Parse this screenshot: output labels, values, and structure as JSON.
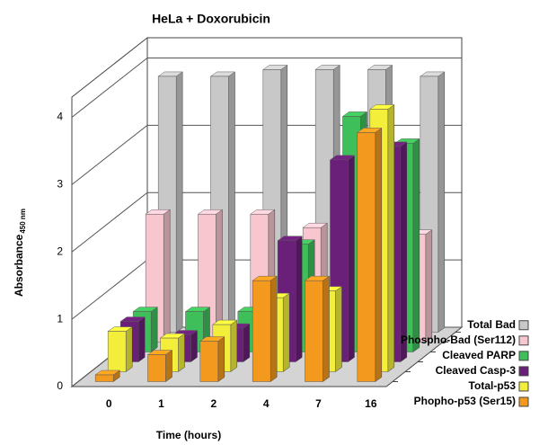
{
  "chart_data": {
    "type": "bar3d",
    "title": "HeLa + Doxorubicin",
    "x_label": "Time (hours)",
    "y_label": "Absorbance",
    "y_label_sub": "450 nm",
    "categories": [
      "0",
      "1",
      "2",
      "4",
      "7",
      "16"
    ],
    "series": [
      {
        "name": "Total Bad",
        "color": "#c8c8c8",
        "values": [
          3.8,
          3.8,
          3.9,
          3.9,
          3.9,
          3.8
        ]
      },
      {
        "name": "Phospho-Bad (Ser112)",
        "color": "#f7c6cf",
        "values": [
          1.9,
          1.9,
          1.9,
          1.7,
          1.5,
          1.6
        ]
      },
      {
        "name": "Cleaved PARP",
        "color": "#3fbf5a",
        "values": [
          0.6,
          0.6,
          0.6,
          1.6,
          3.5,
          3.1
        ]
      },
      {
        "name": "Cleaved Casp-3",
        "color": "#6a1f78",
        "values": [
          0.6,
          0.4,
          0.5,
          1.8,
          3.0,
          3.2
        ]
      },
      {
        "name": "Total-p53",
        "color": "#f2ee3a",
        "values": [
          0.6,
          0.5,
          0.7,
          1.1,
          1.2,
          3.9
        ]
      },
      {
        "name": "Phopho-p53 (Ser15)",
        "color": "#f39a1e",
        "values": [
          0.1,
          0.4,
          0.6,
          1.5,
          1.5,
          3.7
        ]
      }
    ],
    "ylim": [
      0,
      4.3
    ],
    "yticks": [
      0,
      1,
      2,
      3,
      4
    ],
    "grid": true
  }
}
